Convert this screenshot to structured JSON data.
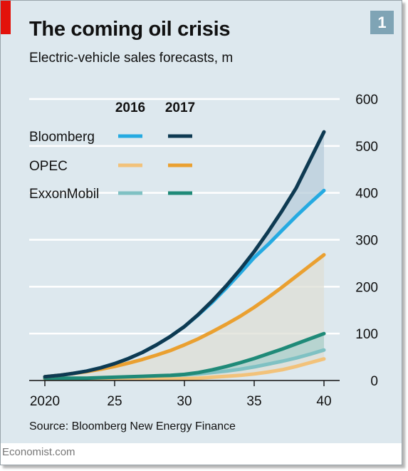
{
  "header": {
    "title": "The coming oil crisis",
    "subtitle": "Electric-vehicle sales forecasts, m",
    "chart_number": "1",
    "accent_color": "#e3120b",
    "background_color": "#dde8ee"
  },
  "footer": {
    "source": "Source: Bloomberg New Energy Finance",
    "brand": "Economist.com"
  },
  "chart_data": {
    "type": "line",
    "title": "The coming oil crisis",
    "subtitle": "Electric-vehicle sales forecasts, m",
    "xlabel": "",
    "ylabel": "",
    "x": [
      2020,
      2021,
      2022,
      2023,
      2024,
      2025,
      2026,
      2027,
      2028,
      2029,
      2030,
      2031,
      2032,
      2033,
      2034,
      2035,
      2036,
      2037,
      2038,
      2039,
      2040
    ],
    "x_tick_values": [
      2020,
      2025,
      2030,
      2035,
      2040
    ],
    "x_tick_labels": [
      "2020",
      "25",
      "30",
      "35",
      "40"
    ],
    "xlim": [
      2020,
      2040
    ],
    "y_ticks": [
      0,
      100,
      200,
      300,
      400,
      500,
      600
    ],
    "ylim": [
      0,
      600
    ],
    "y_axis_side": "right",
    "grid": true,
    "legend_headers": [
      "2016",
      "2017"
    ],
    "legend_placement": "top-left",
    "series": [
      {
        "name": "Bloomberg",
        "forecast": "2016",
        "color": "#25aae1",
        "values": [
          8,
          11,
          15,
          20,
          27,
          36,
          47,
          60,
          76,
          94,
          115,
          140,
          167,
          197,
          229,
          262,
          290,
          320,
          350,
          378,
          405
        ]
      },
      {
        "name": "Bloomberg",
        "forecast": "2017",
        "color": "#0e3a52",
        "values": [
          8,
          11,
          15,
          20,
          27,
          36,
          47,
          60,
          76,
          94,
          115,
          141,
          170,
          202,
          237,
          275,
          317,
          362,
          410,
          470,
          530
        ]
      },
      {
        "name": "OPEC",
        "forecast": "2016",
        "color": "#f2c27a",
        "values": [
          3,
          3,
          3,
          3,
          3,
          3,
          3,
          3,
          3,
          3,
          4,
          5,
          7,
          9,
          11,
          14,
          18,
          23,
          30,
          38,
          46
        ]
      },
      {
        "name": "OPEC",
        "forecast": "2017",
        "color": "#eaa030",
        "values": [
          8,
          11,
          15,
          19,
          24,
          30,
          37,
          45,
          54,
          64,
          76,
          89,
          104,
          120,
          137,
          156,
          177,
          199,
          222,
          245,
          268
        ]
      },
      {
        "name": "ExxonMobil",
        "forecast": "2016",
        "color": "#7fc1c3",
        "values": [
          3,
          3,
          4,
          4,
          5,
          6,
          7,
          8,
          9,
          10,
          12,
          14,
          17,
          20,
          24,
          29,
          35,
          41,
          48,
          56,
          65
        ]
      },
      {
        "name": "ExxonMobil",
        "forecast": "2017",
        "color": "#1f8a78",
        "values": [
          5,
          5,
          5,
          5,
          6,
          7,
          8,
          9,
          10,
          11,
          13,
          17,
          23,
          30,
          38,
          47,
          57,
          67,
          78,
          89,
          100
        ]
      }
    ],
    "shaded_bands": [
      {
        "between": [
          "Bloomberg 2016",
          "Bloomberg 2017"
        ],
        "color": "#b8cedb"
      },
      {
        "between": [
          "OPEC 2016",
          "OPEC 2017"
        ],
        "color": "#dedfd5"
      },
      {
        "between": [
          "ExxonMobil 2016",
          "ExxonMobil 2017"
        ],
        "color": "#a9cfcc"
      }
    ]
  }
}
